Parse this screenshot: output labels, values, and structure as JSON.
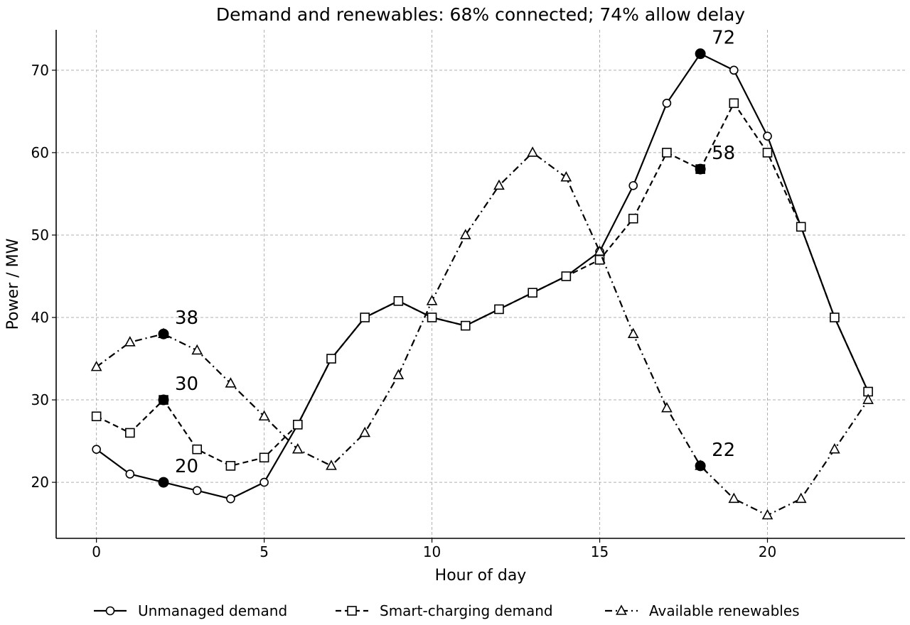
{
  "chart_data": {
    "type": "line",
    "title": "Demand and renewables: 68% connected; 74% allow delay",
    "xlabel": "Hour of day",
    "ylabel": "Power / MW",
    "xlim": [
      -1.2,
      24.1
    ],
    "ylim": [
      13.2,
      74.9
    ],
    "xticks": [
      0,
      5,
      10,
      15,
      20
    ],
    "yticks": [
      20,
      30,
      40,
      50,
      60,
      70
    ],
    "grid": true,
    "legend_position": "bottom-center",
    "x": [
      0,
      1,
      2,
      3,
      4,
      5,
      6,
      7,
      8,
      9,
      10,
      11,
      12,
      13,
      14,
      15,
      16,
      17,
      18,
      19,
      20,
      21,
      22,
      23
    ],
    "series": [
      {
        "name": "Unmanaged demand",
        "marker": "circle",
        "line_style": "solid",
        "values": [
          24,
          21,
          20,
          19,
          18,
          20,
          27,
          35,
          40,
          42,
          40,
          39,
          41,
          43,
          45,
          48,
          56,
          66,
          72,
          70,
          62,
          51,
          40,
          31
        ]
      },
      {
        "name": "Smart-charging demand",
        "marker": "square",
        "line_style": "dashed",
        "values": [
          28,
          26,
          30,
          24,
          22,
          23,
          27,
          35,
          40,
          42,
          40,
          39,
          41,
          43,
          45,
          47,
          52,
          60,
          58,
          66,
          60,
          51,
          40,
          31
        ]
      },
      {
        "name": "Available renewables",
        "marker": "triangle",
        "line_style": "dashdot",
        "values": [
          34,
          37,
          38,
          36,
          32,
          28,
          24,
          22,
          26,
          33,
          42,
          50,
          56,
          60,
          57,
          48,
          38,
          29,
          22,
          18,
          16,
          18,
          24,
          30
        ]
      }
    ],
    "annotations": [
      {
        "x": 2,
        "y": 38,
        "label": "38"
      },
      {
        "x": 2,
        "y": 30,
        "label": "30"
      },
      {
        "x": 2,
        "y": 20,
        "label": "20"
      },
      {
        "x": 18,
        "y": 72,
        "label": "72"
      },
      {
        "x": 18,
        "y": 58,
        "label": "58"
      },
      {
        "x": 18,
        "y": 22,
        "label": "22"
      }
    ],
    "colors": {
      "line": "#000000",
      "marker_fill": "#ffffff",
      "highlight_fill": "#000000",
      "grid": "#b0b0b0"
    }
  }
}
